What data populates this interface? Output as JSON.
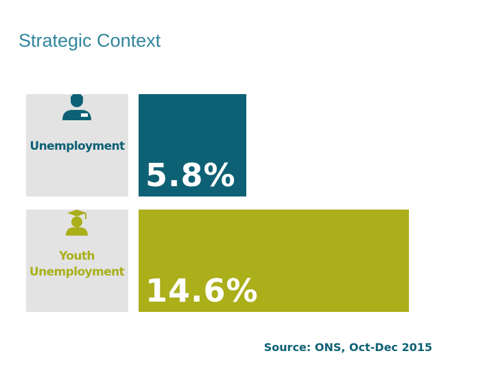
{
  "chart_data": {
    "type": "bar",
    "orientation": "horizontal",
    "title": "Strategic Context",
    "categories": [
      "Unemployment",
      "Youth Unemployment"
    ],
    "values": [
      5.8,
      14.6
    ],
    "value_labels": [
      "5.8%",
      "14.6%"
    ],
    "colors": [
      "#0e6174",
      "#aaaf1a"
    ],
    "source": "Source: ONS, Oct-Dec 2015"
  }
}
